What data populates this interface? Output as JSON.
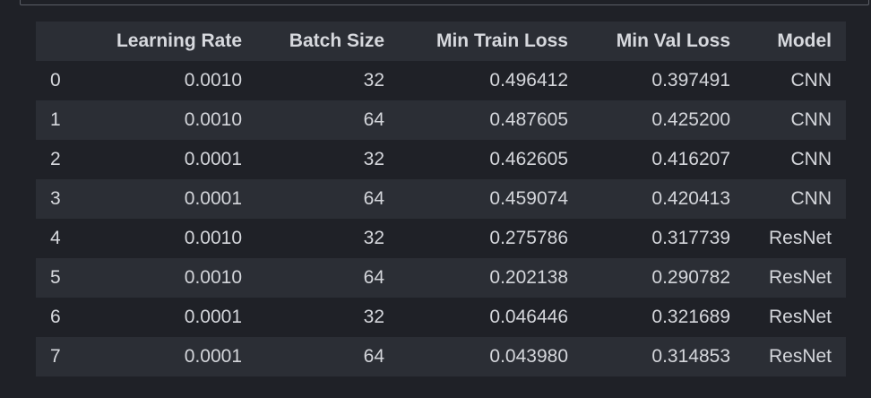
{
  "table": {
    "columns": [
      "",
      "Learning Rate",
      "Batch Size",
      "Min Train Loss",
      "Min Val Loss",
      "Model"
    ],
    "rows": [
      {
        "index": "0",
        "learning_rate": "0.0010",
        "batch_size": "32",
        "min_train_loss": "0.496412",
        "min_val_loss": "0.397491",
        "model": "CNN"
      },
      {
        "index": "1",
        "learning_rate": "0.0010",
        "batch_size": "64",
        "min_train_loss": "0.487605",
        "min_val_loss": "0.425200",
        "model": "CNN"
      },
      {
        "index": "2",
        "learning_rate": "0.0001",
        "batch_size": "32",
        "min_train_loss": "0.462605",
        "min_val_loss": "0.416207",
        "model": "CNN"
      },
      {
        "index": "3",
        "learning_rate": "0.0001",
        "batch_size": "64",
        "min_train_loss": "0.459074",
        "min_val_loss": "0.420413",
        "model": "CNN"
      },
      {
        "index": "4",
        "learning_rate": "0.0010",
        "batch_size": "32",
        "min_train_loss": "0.275786",
        "min_val_loss": "0.317739",
        "model": "ResNet"
      },
      {
        "index": "5",
        "learning_rate": "0.0010",
        "batch_size": "64",
        "min_train_loss": "0.202138",
        "min_val_loss": "0.290782",
        "model": "ResNet"
      },
      {
        "index": "6",
        "learning_rate": "0.0001",
        "batch_size": "32",
        "min_train_loss": "0.046446",
        "min_val_loss": "0.321689",
        "model": "ResNet"
      },
      {
        "index": "7",
        "learning_rate": "0.0001",
        "batch_size": "64",
        "min_train_loss": "0.043980",
        "min_val_loss": "0.314853",
        "model": "ResNet"
      }
    ]
  },
  "colors": {
    "background": "#1f2127",
    "stripe": "#2b2e35",
    "text": "#d4d6db",
    "frame": "#5b5e66"
  }
}
